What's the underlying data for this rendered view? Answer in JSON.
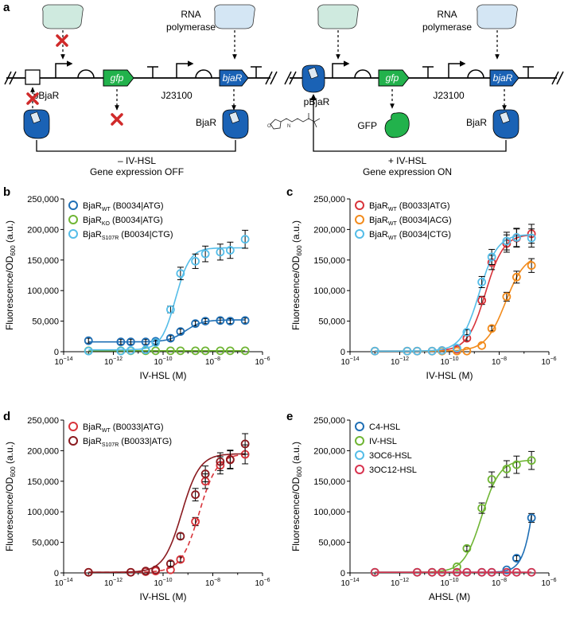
{
  "schematic": {
    "panel_label": "a",
    "off_state": {
      "rnap_label_1": "RNA",
      "rnap_label_2": "polymerase",
      "promoter1": "pBjaR",
      "gene1": "gfp",
      "promoter2": "J23100",
      "gene2": "bjaR",
      "protein": "BjaR",
      "condition": "– IV-HSL",
      "state": "Gene expression OFF"
    },
    "on_state": {
      "rnap_label_1": "RNA",
      "rnap_label_2": "polymerase",
      "promoter1": "pBjaR",
      "gene1": "gfp",
      "promoter2": "J23100",
      "gene2": "bjaR",
      "protein": "BjaR",
      "reporter": "GFP",
      "condition": "+ IV-HSL",
      "state": "Gene expression ON"
    }
  },
  "chart_data": [
    {
      "panel": "b",
      "type": "line",
      "xlabel": "IV-HSL (M)",
      "ylabel_main": "Fluorescence/OD",
      "ylabel_sub": "600",
      "ylabel_tail": " (a.u.)",
      "xscale": "log",
      "xlim": [
        -14,
        -6
      ],
      "ylim": [
        0,
        250000
      ],
      "xticks": [
        {
          "base": "10",
          "exp": "−14"
        },
        {
          "base": "10",
          "exp": "−12"
        },
        {
          "base": "10",
          "exp": "−10"
        },
        {
          "base": "10",
          "exp": "−8"
        },
        {
          "base": "10",
          "exp": "−6"
        }
      ],
      "yticks": [
        "0",
        "50,000",
        "100,000",
        "150,000",
        "200,000",
        "250,000"
      ],
      "legend_position": "top-left",
      "series": [
        {
          "name": "BjaR",
          "sub": "WT",
          "suffix": " (B0034|ATG)",
          "color": "#1f6fb5",
          "dash": false,
          "fit": {
            "bottom": 16000,
            "top": 52000,
            "ec50": -9.1,
            "hill": 1.3
          },
          "x": [
            -13,
            -11.7,
            -11.3,
            -10.7,
            -10.3,
            -9.7,
            -9.3,
            -8.7,
            -8.3,
            -7.7,
            -7.3,
            -6.7
          ],
          "y": [
            18000,
            16000,
            16000,
            16000,
            17000,
            22000,
            33000,
            46000,
            50000,
            51000,
            50000,
            51000
          ]
        },
        {
          "name": "BjaR",
          "sub": "KO",
          "suffix": " (B0034|ATG)",
          "color": "#6fb534",
          "dash": false,
          "fit": {
            "bottom": 1500,
            "top": 1500,
            "ec50": -9,
            "hill": 1
          },
          "x": [
            -13,
            -11.7,
            -11.3,
            -10.7,
            -10.3,
            -9.7,
            -9.3,
            -8.7,
            -8.3,
            -7.7,
            -7.3,
            -6.7
          ],
          "y": [
            1500,
            1500,
            1500,
            1500,
            1500,
            1500,
            1500,
            1500,
            1500,
            1500,
            1500,
            1500
          ]
        },
        {
          "name": "BjaR",
          "sub": "S107R",
          "suffix": " (B0034|CTG)",
          "color": "#55bde8",
          "dash": false,
          "fit": {
            "bottom": 3000,
            "top": 170000,
            "ec50": -9.5,
            "hill": 1.5
          },
          "x": [
            -13,
            -11.7,
            -11.3,
            -10.7,
            -10.3,
            -9.7,
            -9.3,
            -8.7,
            -8.3,
            -7.7,
            -7.3,
            -6.7
          ],
          "y": [
            1000,
            1000,
            2000,
            3000,
            15000,
            69000,
            128000,
            148000,
            160000,
            163000,
            166000,
            184000
          ]
        }
      ]
    },
    {
      "panel": "c",
      "type": "line",
      "xlabel": "IV-HSL (M)",
      "ylabel_main": "Fluorescence/OD",
      "ylabel_sub": "600",
      "ylabel_tail": " (a.u.)",
      "xscale": "log",
      "xlim": [
        -14,
        -6
      ],
      "ylim": [
        0,
        250000
      ],
      "xticks": [
        {
          "base": "10",
          "exp": "−14"
        },
        {
          "base": "10",
          "exp": "−12"
        },
        {
          "base": "10",
          "exp": "−10"
        },
        {
          "base": "10",
          "exp": "−8"
        },
        {
          "base": "10",
          "exp": "−6"
        }
      ],
      "yticks": [
        "0",
        "50,000",
        "100,000",
        "150,000",
        "200,000",
        "250,000"
      ],
      "legend_position": "top-left",
      "series": [
        {
          "name": "BjaR",
          "sub": "WT",
          "suffix": " (B0033|ATG)",
          "color": "#d8333a",
          "dash": false,
          "fit": {
            "bottom": 1000,
            "top": 192000,
            "ec50": -8.55,
            "hill": 1.2
          },
          "x": [
            -13,
            -11.7,
            -11.3,
            -10.7,
            -10.3,
            -9.7,
            -9.3,
            -8.7,
            -8.3,
            -7.7,
            -7.3,
            -6.7
          ],
          "y": [
            1000,
            1000,
            1000,
            1000,
            2000,
            4000,
            22000,
            84000,
            146000,
            177000,
            186000,
            193000
          ]
        },
        {
          "name": "BjaR",
          "sub": "WT",
          "suffix": " (B0034|ACG)",
          "color": "#f28b1c",
          "dash": false,
          "fit": {
            "bottom": 1000,
            "top": 160000,
            "ec50": -7.75,
            "hill": 1.1
          },
          "x": [
            -13,
            -11.7,
            -11.3,
            -10.7,
            -10.3,
            -9.7,
            -9.3,
            -8.7,
            -8.3,
            -7.7,
            -7.3,
            -6.7
          ],
          "y": [
            1000,
            1000,
            1000,
            1000,
            1000,
            1000,
            1000,
            10000,
            38000,
            90000,
            122000,
            141000
          ]
        },
        {
          "name": "BjaR",
          "sub": "WT",
          "suffix": " (B0034|CTG)",
          "color": "#55bde8",
          "dash": false,
          "fit": {
            "bottom": 1000,
            "top": 192000,
            "ec50": -8.8,
            "hill": 1.2
          },
          "x": [
            -13,
            -11.7,
            -11.3,
            -10.7,
            -10.3,
            -9.7,
            -9.3,
            -8.7,
            -8.3,
            -7.7,
            -7.3,
            -6.7
          ],
          "y": [
            1000,
            1000,
            1000,
            1000,
            2000,
            6000,
            32000,
            114000,
            155000,
            181000,
            187000,
            186000
          ]
        }
      ]
    },
    {
      "panel": "d",
      "type": "line",
      "xlabel": "IV-HSL (M)",
      "ylabel_main": "Fluorescence/OD",
      "ylabel_sub": "600",
      "ylabel_tail": " (a.u.)",
      "xscale": "log",
      "xlim": [
        -14,
        -6
      ],
      "ylim": [
        0,
        250000
      ],
      "xticks": [
        {
          "base": "10",
          "exp": "−14"
        },
        {
          "base": "10",
          "exp": "−12"
        },
        {
          "base": "10",
          "exp": "−10"
        },
        {
          "base": "10",
          "exp": "−8"
        },
        {
          "base": "10",
          "exp": "−6"
        }
      ],
      "yticks": [
        "0",
        "50,000",
        "100,000",
        "150,000",
        "200,000",
        "250,000"
      ],
      "legend_position": "top-left",
      "series": [
        {
          "name": "BjaR",
          "sub": "WT",
          "suffix": " (B0033|ATG)",
          "color": "#d8333a",
          "dash": true,
          "fit": {
            "bottom": 1000,
            "top": 195000,
            "ec50": -8.55,
            "hill": 1.2
          },
          "x": [
            -13,
            -11.3,
            -10.7,
            -10.3,
            -9.7,
            -9.3,
            -8.7,
            -8.3,
            -7.7,
            -7.3,
            -6.7
          ],
          "y": [
            1000,
            1000,
            2000,
            3000,
            5000,
            22000,
            84000,
            150000,
            176000,
            186000,
            194000
          ]
        },
        {
          "name": "BjaR",
          "sub": "S107R",
          "suffix": " (B0033|ATG)",
          "color": "#8a1a1f",
          "dash": false,
          "fit": {
            "bottom": 1000,
            "top": 195000,
            "ec50": -9.25,
            "hill": 1.2
          },
          "x": [
            -13,
            -11.3,
            -10.7,
            -10.3,
            -9.7,
            -9.3,
            -8.7,
            -8.3,
            -7.7,
            -7.3,
            -6.7
          ],
          "y": [
            1000,
            1000,
            3000,
            5000,
            15000,
            60000,
            128000,
            162000,
            182000,
            185000,
            211000
          ]
        }
      ]
    },
    {
      "panel": "e",
      "type": "line",
      "xlabel": "AHSL (M)",
      "ylabel_main": "Fluorescence/OD",
      "ylabel_sub": "600",
      "ylabel_tail": " (a.u.)",
      "xscale": "log",
      "xlim": [
        -14,
        -6
      ],
      "ylim": [
        0,
        250000
      ],
      "xticks": [
        {
          "base": "10",
          "exp": "−14"
        },
        {
          "base": "10",
          "exp": "−12"
        },
        {
          "base": "10",
          "exp": "−10"
        },
        {
          "base": "10",
          "exp": "−8"
        },
        {
          "base": "10",
          "exp": "−6"
        }
      ],
      "yticks": [
        "0",
        "50,000",
        "100,000",
        "150,000",
        "200,000",
        "250,000"
      ],
      "legend_position": "top-left",
      "series": [
        {
          "name": "C4-HSL",
          "sub": "",
          "suffix": "",
          "color": "#1f6fb5",
          "dash": false,
          "fit": {
            "bottom": 1000,
            "top": 500000,
            "ec50": -6.3,
            "hill": 1.6
          },
          "x": [
            -13,
            -11.3,
            -10.7,
            -10.3,
            -9.7,
            -9.3,
            -8.7,
            -8.3,
            -7.7,
            -7.3,
            -6.7
          ],
          "y": [
            1000,
            1000,
            1000,
            1000,
            1000,
            1000,
            1000,
            1000,
            5000,
            24000,
            90000
          ]
        },
        {
          "name": "IV-HSL",
          "sub": "",
          "suffix": "",
          "color": "#6fb534",
          "dash": false,
          "fit": {
            "bottom": 1000,
            "top": 185000,
            "ec50": -8.7,
            "hill": 1.2
          },
          "x": [
            -13,
            -11.3,
            -10.7,
            -10.3,
            -9.7,
            -9.3,
            -8.7,
            -8.3,
            -7.7,
            -7.3,
            -6.7
          ],
          "y": [
            1000,
            1000,
            1000,
            1000,
            10000,
            40000,
            106000,
            153000,
            170000,
            177000,
            184000
          ]
        },
        {
          "name": "3OC6-HSL",
          "sub": "",
          "suffix": "",
          "color": "#55bde8",
          "dash": false,
          "fit": {
            "bottom": 1000,
            "top": 1000,
            "ec50": -8,
            "hill": 1
          },
          "x": [
            -13,
            -11.3,
            -10.7,
            -10.3,
            -9.7,
            -9.3,
            -8.7,
            -8.3,
            -7.7,
            -7.3,
            -6.7
          ],
          "y": [
            1000,
            1000,
            1000,
            1000,
            1000,
            1000,
            1000,
            1000,
            1000,
            1000,
            1000
          ]
        },
        {
          "name": "3OC12-HSL",
          "sub": "",
          "suffix": "",
          "color": "#d8334f",
          "dash": false,
          "fit": {
            "bottom": 1000,
            "top": 1000,
            "ec50": -8,
            "hill": 1
          },
          "x": [
            -13,
            -11.3,
            -10.7,
            -10.3,
            -9.7,
            -9.3,
            -8.7,
            -8.3,
            -7.7,
            -7.3,
            -6.7
          ],
          "y": [
            1000,
            1000,
            1000,
            1000,
            1000,
            1000,
            1000,
            1000,
            1000,
            1000,
            1000
          ]
        }
      ]
    }
  ]
}
